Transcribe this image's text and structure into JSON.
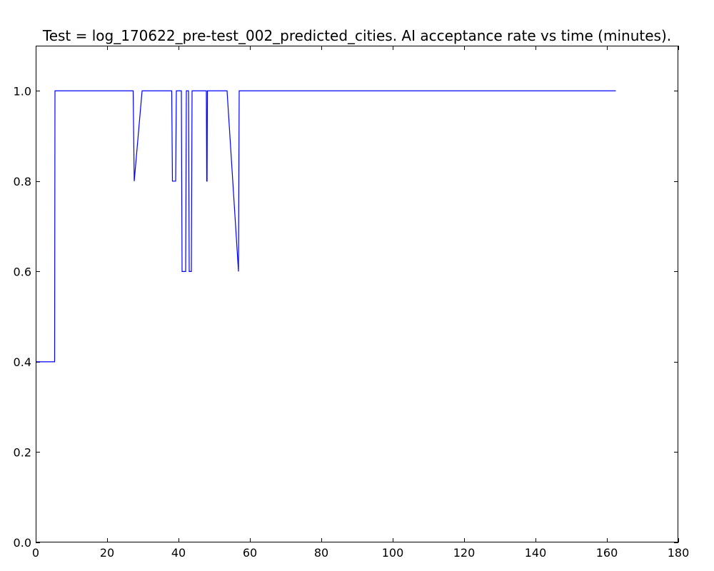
{
  "chart_data": {
    "type": "line",
    "title": "Test = log_170622_pre-test_002_predicted_cities. AI acceptance rate vs time (minutes).",
    "xlabel": "",
    "ylabel": "",
    "xlim": [
      0,
      180
    ],
    "ylim": [
      0.0,
      1.1
    ],
    "xticks": [
      0,
      20,
      40,
      60,
      80,
      100,
      120,
      140,
      160,
      180
    ],
    "yticks": [
      0.0,
      0.2,
      0.4,
      0.6,
      0.8,
      1.0
    ],
    "xtick_labels": [
      "0",
      "20",
      "40",
      "60",
      "80",
      "100",
      "120",
      "140",
      "160",
      "180"
    ],
    "ytick_labels": [
      "0.0",
      "0.2",
      "0.4",
      "0.6",
      "0.8",
      "1.0"
    ],
    "grid": false,
    "series": [
      {
        "color": "#0000ff",
        "x": [
          0,
          5.3,
          5.4,
          27.3,
          27.6,
          29.8,
          38.1,
          38.3,
          39.2,
          39.4,
          40.8,
          41.0,
          42.0,
          42.2,
          42.8,
          43.0,
          43.6,
          43.8,
          47.8,
          47.9,
          48.0,
          48.1,
          53.6,
          56.8,
          57.0,
          162.5
        ],
        "y": [
          0.4,
          0.4,
          1.0,
          1.0,
          0.8,
          1.0,
          1.0,
          0.8,
          0.8,
          1.0,
          1.0,
          0.6,
          0.6,
          1.0,
          1.0,
          0.6,
          0.6,
          1.0,
          1.0,
          0.8,
          0.8,
          1.0,
          1.0,
          0.6,
          1.0,
          1.0
        ]
      }
    ]
  }
}
